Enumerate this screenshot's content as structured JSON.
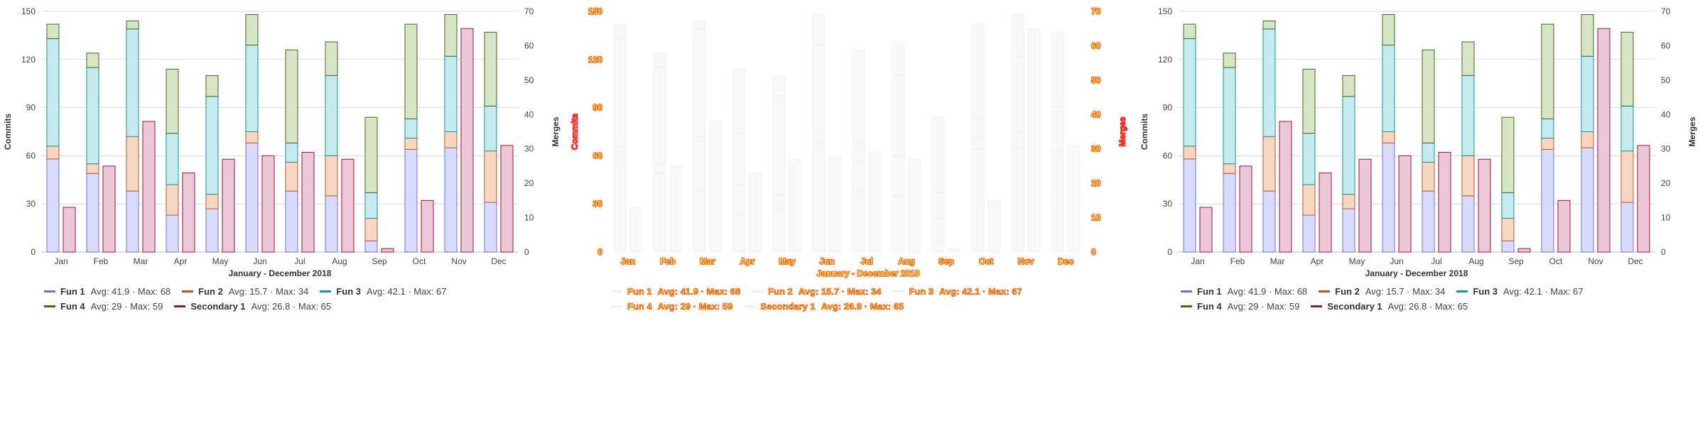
{
  "chart_data": [
    {
      "panel": "left",
      "type": "bar",
      "title": "",
      "xlabel": "January - December 2018",
      "ylabel": "Commits",
      "y2label": "Merges",
      "ylim": [
        0,
        150
      ],
      "y2lim": [
        0,
        70
      ],
      "yticks": [
        "0",
        "30",
        "60",
        "90",
        "120",
        "150"
      ],
      "y2ticks": [
        "0",
        "10",
        "20",
        "30",
        "40",
        "50",
        "60",
        "70"
      ],
      "categories": [
        "Jan",
        "Feb",
        "Mar",
        "Apr",
        "May",
        "Jun",
        "Jul",
        "Aug",
        "Sep",
        "Oct",
        "Nov",
        "Dec"
      ],
      "grid": true,
      "series": [
        {
          "name": "Fun 1",
          "stack": "primary",
          "axis": "left",
          "color": "#6b6ff0",
          "fill": "#d8dbfb",
          "values": [
            58,
            49,
            38,
            23,
            27,
            68,
            38,
            35,
            7,
            64,
            65,
            31
          ],
          "stats": "Avg: 41.9 · Max: 68"
        },
        {
          "name": "Fun 2",
          "stack": "primary",
          "axis": "left",
          "color": "#c8561b",
          "fill": "#f6d7c3",
          "values": [
            8,
            6,
            34,
            19,
            9,
            7,
            18,
            25,
            14,
            7,
            10,
            32
          ],
          "stats": "Avg: 15.7 · Max: 34"
        },
        {
          "name": "Fun 3",
          "stack": "primary",
          "axis": "left",
          "color": "#1a92a8",
          "fill": "#c6ebef",
          "values": [
            67,
            60,
            67,
            32,
            61,
            54,
            12,
            50,
            16,
            12,
            47,
            28
          ],
          "stats": "Avg: 42.1 · Max: 67"
        },
        {
          "name": "Fun 4",
          "stack": "primary",
          "axis": "left",
          "color": "#3f6d1e",
          "fill": "#d5e5c6",
          "values": [
            9,
            9,
            5,
            40,
            13,
            19,
            58,
            21,
            47,
            59,
            26,
            46
          ],
          "stats": "Avg: 29 · Max: 59"
        },
        {
          "name": "Secondary 1",
          "stack": "secondary",
          "axis": "right",
          "color": "#9a1446",
          "fill": "#ecc8d6",
          "values": [
            13,
            25,
            38,
            23,
            27,
            28,
            29,
            27,
            1,
            15,
            65,
            31
          ],
          "stats": "Avg: 26.8 · Max: 65"
        }
      ]
    },
    {
      "panel": "middle",
      "type": "bar",
      "glitched": true,
      "title": "",
      "xlabel": "January - December 2018",
      "ylabel": "Commits",
      "y2label": "Merges",
      "ylim": [
        0,
        150
      ],
      "y2lim": [
        0,
        70
      ],
      "yticks": [
        "0",
        "30",
        "60",
        "90",
        "120",
        "150"
      ],
      "y2ticks": [
        "0",
        "10",
        "20",
        "30",
        "40",
        "50",
        "60",
        "70"
      ],
      "categories": [
        "Jan",
        "Feb",
        "Mar",
        "Apr",
        "May",
        "Jun",
        "Jul",
        "Aug",
        "Sep",
        "Oct",
        "Nov",
        "Dec"
      ],
      "grid": false,
      "series": [
        {
          "name": "Fun 1",
          "stack": "primary",
          "axis": "left",
          "color": "#eeeeee",
          "fill": "#f7f7f7",
          "values": [
            58,
            49,
            38,
            23,
            27,
            68,
            38,
            35,
            7,
            64,
            65,
            31
          ],
          "stats": "Avg: 41.9 · Max: 68"
        },
        {
          "name": "Fun 2",
          "stack": "primary",
          "axis": "left",
          "color": "#eeeeee",
          "fill": "#f7f7f7",
          "values": [
            8,
            6,
            34,
            19,
            9,
            7,
            18,
            25,
            14,
            7,
            10,
            32
          ],
          "stats": "Avg: 15.7 · Max: 34"
        },
        {
          "name": "Fun 3",
          "stack": "primary",
          "axis": "left",
          "color": "#eeeeee",
          "fill": "#f7f7f7",
          "values": [
            67,
            60,
            67,
            32,
            61,
            54,
            12,
            50,
            16,
            12,
            47,
            28
          ],
          "stats": "Avg: 42.1 · Max: 67"
        },
        {
          "name": "Fun 4",
          "stack": "primary",
          "axis": "left",
          "color": "#eeeeee",
          "fill": "#f7f7f7",
          "values": [
            9,
            9,
            5,
            40,
            13,
            19,
            58,
            21,
            47,
            59,
            26,
            46
          ],
          "stats": "Avg: 29 · Max: 59"
        },
        {
          "name": "Secondary 1",
          "stack": "secondary",
          "axis": "right",
          "color": "#eeeeee",
          "fill": "#f7f7f7",
          "values": [
            13,
            25,
            38,
            23,
            27,
            28,
            29,
            27,
            1,
            15,
            65,
            31
          ],
          "stats": "Avg: 26.8 · Max: 65"
        }
      ]
    },
    {
      "panel": "right",
      "type": "bar",
      "title": "",
      "xlabel": "January - December 2018",
      "ylabel": "Commits",
      "y2label": "Merges",
      "ylim": [
        0,
        150
      ],
      "y2lim": [
        0,
        70
      ],
      "yticks": [
        "0",
        "30",
        "60",
        "90",
        "120",
        "150"
      ],
      "y2ticks": [
        "0",
        "10",
        "20",
        "30",
        "40",
        "50",
        "60",
        "70"
      ],
      "categories": [
        "Jan",
        "Feb",
        "Mar",
        "Apr",
        "May",
        "Jun",
        "Jul",
        "Aug",
        "Sep",
        "Oct",
        "Nov",
        "Dec"
      ],
      "grid": true,
      "series": [
        {
          "name": "Fun 1",
          "stack": "primary",
          "axis": "left",
          "color": "#6b6ff0",
          "fill": "#d8dbfb",
          "values": [
            58,
            49,
            38,
            23,
            27,
            68,
            38,
            35,
            7,
            64,
            65,
            31
          ],
          "stats": "Avg: 41.9 · Max: 68"
        },
        {
          "name": "Fun 2",
          "stack": "primary",
          "axis": "left",
          "color": "#c8561b",
          "fill": "#f6d7c3",
          "values": [
            8,
            6,
            34,
            19,
            9,
            7,
            18,
            25,
            14,
            7,
            10,
            32
          ],
          "stats": "Avg: 15.7 · Max: 34"
        },
        {
          "name": "Fun 3",
          "stack": "primary",
          "axis": "left",
          "color": "#1a92a8",
          "fill": "#c6ebef",
          "values": [
            67,
            60,
            67,
            32,
            61,
            54,
            12,
            50,
            16,
            12,
            47,
            28
          ],
          "stats": "Avg: 42.1 · Max: 67"
        },
        {
          "name": "Fun 4",
          "stack": "primary",
          "axis": "left",
          "color": "#3f6d1e",
          "fill": "#d5e5c6",
          "values": [
            9,
            9,
            5,
            40,
            13,
            19,
            58,
            21,
            47,
            59,
            26,
            46
          ],
          "stats": "Avg: 29 · Max: 59"
        },
        {
          "name": "Secondary 1",
          "stack": "secondary",
          "axis": "right",
          "color": "#9a1446",
          "fill": "#ecc8d6",
          "values": [
            13,
            25,
            38,
            23,
            27,
            28,
            29,
            27,
            1,
            15,
            65,
            31
          ],
          "stats": "Avg: 26.8 · Max: 65"
        }
      ]
    }
  ]
}
